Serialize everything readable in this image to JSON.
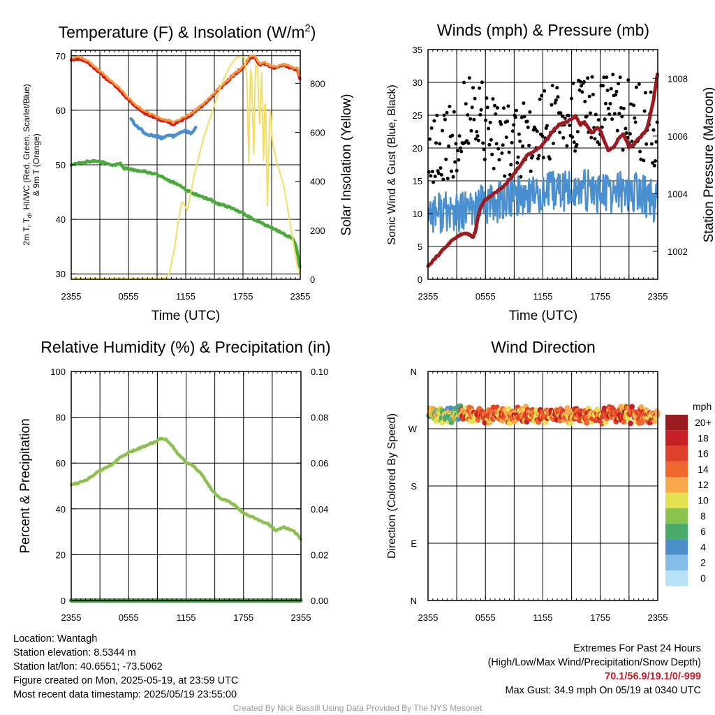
{
  "chart_data": [
    {
      "type": "line",
      "title": "Temperature (F) & Insolation (W/m",
      "title_superscript": "2",
      "title_close": ")",
      "ylabel_line1": "2m T, T",
      "ylabel_sub": "d",
      "ylabel_line1_rest": ", HI/WC (Red, Green, Scarlet/Blue)",
      "ylabel_line2": "& 9m T (Orange)",
      "y2label": "Solar Insolation (Yellow)",
      "xlabel": "Time (UTC)",
      "x_ticks": [
        "2355",
        "0555",
        "1155",
        "1755",
        "2355"
      ],
      "y_ticks": [
        "30",
        "40",
        "50",
        "60",
        "70"
      ],
      "y2_ticks": [
        "0",
        "200",
        "400",
        "600",
        "800"
      ],
      "ylim": [
        29,
        71
      ],
      "y2lim": [
        0,
        935
      ],
      "grid": true,
      "series": [
        {
          "label": "Red",
          "color": "#d7191c",
          "axis": "left",
          "lw": 4.5,
          "points": [
            [
              0,
              69.3
            ],
            [
              1,
              69.5
            ],
            [
              2,
              68.8
            ],
            [
              3,
              67.6
            ],
            [
              4,
              66.2
            ],
            [
              5,
              65
            ],
            [
              6,
              63.6
            ],
            [
              7,
              62
            ],
            [
              8,
              60.6
            ],
            [
              9,
              59.5
            ],
            [
              10,
              58.8
            ],
            [
              11,
              58.2
            ],
            [
              12,
              57.8
            ],
            [
              12.5,
              57.4
            ],
            [
              13,
              57.8
            ],
            [
              14,
              58.6
            ],
            [
              15,
              59.6
            ],
            [
              16,
              60.8
            ],
            [
              17,
              62.2
            ],
            [
              18,
              63.8
            ],
            [
              19,
              65.2
            ],
            [
              20,
              66.6
            ],
            [
              21,
              67.8
            ],
            [
              21.8,
              69.6
            ],
            [
              22.4,
              69.9
            ],
            [
              23,
              68.4
            ],
            [
              23.6,
              68.6
            ],
            [
              24,
              68.2
            ],
            [
              25,
              67.8
            ],
            [
              26,
              68.3
            ],
            [
              27,
              67.7
            ],
            [
              27.6,
              67.5
            ],
            [
              28,
              65.6
            ]
          ]
        },
        {
          "label": "Orange",
          "color": "#f49a3c",
          "axis": "left",
          "lw": 3,
          "points": [
            [
              0,
              69.7
            ],
            [
              1,
              69.8
            ],
            [
              2,
              69.1
            ],
            [
              3,
              67.9
            ],
            [
              4,
              66.5
            ],
            [
              5,
              65.3
            ],
            [
              6,
              63.9
            ],
            [
              7,
              62.3
            ],
            [
              8,
              60.9
            ],
            [
              9,
              59.8
            ],
            [
              10,
              59.1
            ],
            [
              11,
              58.5
            ],
            [
              12,
              58.1
            ],
            [
              12.5,
              57.7
            ],
            [
              13,
              58.1
            ],
            [
              14,
              58.9
            ],
            [
              15,
              59.8
            ],
            [
              16,
              61
            ],
            [
              17,
              62.4
            ],
            [
              18,
              64
            ],
            [
              19,
              65.4
            ],
            [
              20,
              66.8
            ],
            [
              21,
              68
            ],
            [
              21.8,
              69.8
            ],
            [
              22.4,
              70.1
            ],
            [
              23,
              68.6
            ],
            [
              23.6,
              68.8
            ],
            [
              24,
              68.4
            ],
            [
              25,
              68
            ],
            [
              26,
              68.5
            ],
            [
              27,
              67.9
            ],
            [
              27.6,
              67.7
            ],
            [
              28,
              65.9
            ]
          ]
        },
        {
          "label": "Blue",
          "color": "#4a90d0",
          "axis": "left",
          "lw": 4.5,
          "points": [
            [
              7.3,
              58.5
            ],
            [
              8,
              57
            ],
            [
              8.6,
              56.5
            ],
            [
              9,
              55.6
            ],
            [
              10,
              55.4
            ],
            [
              10.6,
              55.2
            ],
            [
              11,
              54.9
            ],
            [
              12,
              55.4
            ],
            [
              12.5,
              55.2
            ],
            [
              13,
              55.8
            ],
            [
              14,
              56.2
            ],
            [
              14.6,
              55.8
            ],
            [
              15,
              56.2
            ],
            [
              15.3,
              57
            ]
          ]
        },
        {
          "label": "Green",
          "color": "#4aaa3c",
          "axis": "left",
          "lw": 4.5,
          "points": [
            [
              0,
              50
            ],
            [
              1,
              50.4
            ],
            [
              2,
              50.6
            ],
            [
              3,
              50.7
            ],
            [
              4,
              50.4
            ],
            [
              5,
              49.9
            ],
            [
              6,
              50.2
            ],
            [
              6.5,
              49.3
            ],
            [
              7,
              49.3
            ],
            [
              8,
              49
            ],
            [
              9,
              48.8
            ],
            [
              10,
              48.4
            ],
            [
              11,
              47.9
            ],
            [
              12,
              47.1
            ],
            [
              13,
              46.5
            ],
            [
              14,
              45.4
            ],
            [
              15,
              44.7
            ],
            [
              16,
              44.1
            ],
            [
              17,
              43.6
            ],
            [
              18,
              42.8
            ],
            [
              19,
              42.4
            ],
            [
              20,
              41.8
            ],
            [
              21,
              41.1
            ],
            [
              22,
              40.3
            ],
            [
              23,
              39.5
            ],
            [
              24,
              38.8
            ],
            [
              25,
              38.1
            ],
            [
              26,
              37.3
            ],
            [
              27,
              36.6
            ],
            [
              27.5,
              35
            ],
            [
              28,
              30.8
            ]
          ]
        },
        {
          "label": "Yellow",
          "color": "#f2de63",
          "axis": "right",
          "lw": 2,
          "points": [
            [
              0,
              3
            ],
            [
              11.4,
              3
            ],
            [
              12,
              25
            ],
            [
              12.6,
              120
            ],
            [
              13.2,
              260
            ],
            [
              13.6,
              320
            ],
            [
              14.2,
              280
            ],
            [
              15,
              420
            ],
            [
              15.6,
              500
            ],
            [
              16.2,
              580
            ],
            [
              17,
              660
            ],
            [
              17.6,
              720
            ],
            [
              18.2,
              780
            ],
            [
              18.8,
              830
            ],
            [
              19.6,
              880
            ],
            [
              20.2,
              905
            ],
            [
              20.8,
              910
            ],
            [
              21.2,
              905
            ],
            [
              21.5,
              820
            ],
            [
              21.7,
              430
            ],
            [
              21.9,
              880
            ],
            [
              22.1,
              800
            ],
            [
              22.3,
              470
            ],
            [
              22.5,
              880
            ],
            [
              22.8,
              860
            ],
            [
              23,
              600
            ],
            [
              23.3,
              860
            ],
            [
              23.5,
              450
            ],
            [
              23.7,
              820
            ],
            [
              24,
              300
            ],
            [
              24.3,
              720
            ],
            [
              24.6,
              560
            ],
            [
              25.2,
              470
            ],
            [
              26,
              380
            ],
            [
              26.6,
              260
            ],
            [
              27.2,
              140
            ],
            [
              27.6,
              60
            ],
            [
              28,
              20
            ]
          ]
        }
      ]
    },
    {
      "type": "scatter",
      "title": "Winds (mph) & Pressure (mb)",
      "ylabel": "Sonic Wind & Gust (Blue, Black)",
      "y2label": "Station Pressure (Maroon)",
      "xlabel": "Time (UTC)",
      "x_ticks": [
        "2355",
        "0555",
        "1155",
        "1755",
        "2355"
      ],
      "y_ticks": [
        "0",
        "5",
        "10",
        "15",
        "20",
        "25",
        "30",
        "35"
      ],
      "y2_ticks": [
        "1002",
        "1004",
        "1006",
        "1008"
      ],
      "ylim": [
        0,
        35
      ],
      "y2lim": [
        1001.03,
        1009
      ],
      "grid": true,
      "series": [
        {
          "name": "Maroon",
          "color": "#9b1b20",
          "axis": "right",
          "lw": 5,
          "points": [
            [
              0,
              1001.5
            ],
            [
              1,
              1001.8
            ],
            [
              2,
              1002.1
            ],
            [
              3,
              1002.4
            ],
            [
              4,
              1002.6
            ],
            [
              5,
              1002.6
            ],
            [
              5.5,
              1002.5
            ],
            [
              5.8,
              1002.7
            ],
            [
              6.1,
              1003.2
            ],
            [
              6.5,
              1003.6
            ],
            [
              7,
              1003.8
            ],
            [
              8,
              1004
            ],
            [
              9,
              1004.2
            ],
            [
              10,
              1004.5
            ],
            [
              11,
              1004.9
            ],
            [
              12,
              1005.3
            ],
            [
              13,
              1005.5
            ],
            [
              14,
              1005.7
            ],
            [
              15,
              1006.1
            ],
            [
              16,
              1006.4
            ],
            [
              17,
              1006.5
            ],
            [
              18,
              1006.7
            ],
            [
              18.6,
              1006.4
            ],
            [
              19,
              1006.5
            ],
            [
              20,
              1006.1
            ],
            [
              20.6,
              1006.3
            ],
            [
              21,
              1006.2
            ],
            [
              21.5,
              1005.8
            ],
            [
              22,
              1005.5
            ],
            [
              22.6,
              1005.6
            ],
            [
              23.2,
              1005.9
            ],
            [
              23.8,
              1006.1
            ],
            [
              24.5,
              1005.6
            ],
            [
              25,
              1005.7
            ],
            [
              26,
              1006
            ],
            [
              26.6,
              1006.2
            ],
            [
              27,
              1006.6
            ],
            [
              27.5,
              1007.3
            ],
            [
              28,
              1008.2
            ]
          ]
        }
      ]
    },
    {
      "type": "line",
      "title": "Relative Humidity (%) & Precipitation (in)",
      "ylabel": "Percent & Precipitation",
      "y_ticks": [
        "0",
        "20",
        "40",
        "60",
        "80",
        "100"
      ],
      "y2_ticks": [
        "0.00",
        "0.02",
        "0.04",
        "0.06",
        "0.08",
        "0.10"
      ],
      "x_ticks": [
        "2355",
        "0555",
        "1155",
        "1755",
        "2355"
      ],
      "ylim": [
        0,
        100
      ],
      "y2lim": [
        0,
        0.1
      ],
      "grid": true,
      "series": [
        {
          "name": "RH",
          "color": "#8cc152",
          "axis": "left",
          "lw": 4.5,
          "points": [
            [
              0,
              50.7
            ],
            [
              1,
              51.5
            ],
            [
              2,
              53
            ],
            [
              3,
              55.5
            ],
            [
              4,
              57.5
            ],
            [
              5,
              59.5
            ],
            [
              6,
              62.5
            ],
            [
              7,
              64.5
            ],
            [
              8,
              66
            ],
            [
              9,
              67.5
            ],
            [
              10,
              69
            ],
            [
              11,
              70.8
            ],
            [
              11.5,
              70.5
            ],
            [
              12,
              69
            ],
            [
              13,
              64
            ],
            [
              14,
              60.5
            ],
            [
              15,
              58.5
            ],
            [
              16,
              54.5
            ],
            [
              17,
              49
            ],
            [
              18,
              45
            ],
            [
              19,
              43.5
            ],
            [
              20,
              41.5
            ],
            [
              21,
              38
            ],
            [
              22,
              36.5
            ],
            [
              23,
              34.7
            ],
            [
              24,
              33.5
            ],
            [
              25,
              30.5
            ],
            [
              26,
              32
            ],
            [
              27,
              30.5
            ],
            [
              28,
              27
            ]
          ]
        },
        {
          "name": "Precip",
          "color": "#3c9a3c",
          "axis": "right",
          "lw": 6,
          "points": [
            [
              0,
              0
            ],
            [
              28,
              0
            ]
          ]
        }
      ]
    },
    {
      "type": "scatter",
      "title": "Wind Direction",
      "ylabel": "Direction (Colored By Speed)",
      "y_ticks": [
        "N",
        "E",
        "S",
        "W",
        "N"
      ],
      "x_ticks": [
        "2355",
        "0555",
        "1155",
        "1755",
        "2355"
      ],
      "ylim": [
        0,
        360
      ],
      "grid": true,
      "legend_title": "mph",
      "legend_labels": [
        "20+",
        "18",
        "16",
        "14",
        "12",
        "10",
        "8",
        "6",
        "4",
        "2",
        "0"
      ],
      "legend_colors": [
        "#9b1b20",
        "#c62026",
        "#e0412b",
        "#f0672e",
        "#f9a84b",
        "#e6e150",
        "#8ac44f",
        "#4aaa6a",
        "#4a8fc9",
        "#84bde8",
        "#b8e3f7"
      ],
      "direction_band_deg": [
        278,
        305
      ]
    }
  ],
  "info": {
    "location": "Location: Wantagh",
    "elevation": "Station elevation: 8.5344 m",
    "latlon": "Station lat/lon: 40.6551; -73.5062",
    "created": "Figure created on Mon, 2025-05-19, at 23:59 UTC",
    "recent": "Most recent data timestamp: 2025/05/19 23:55:00"
  },
  "extremes": {
    "title": "Extremes For Past 24 Hours",
    "subtitle": "(High/Low/Max Wind/Precipitation/Snow Depth)",
    "values": "70.1/56.9/19.1/0/-999",
    "max_gust": "Max Gust: 34.9 mph On 05/19 at 0340 UTC"
  },
  "credit": "Created By Nick Bassill Using Data Provided By The NYS Mesonet"
}
